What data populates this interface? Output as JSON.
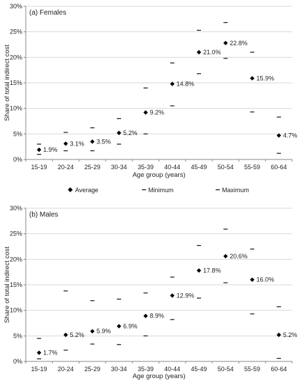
{
  "chart_data": [
    {
      "type": "scatter",
      "title": "(a) Females",
      "xlabel": "Age group (years)",
      "ylabel": "Share of total indirect cost",
      "ylim": [
        0,
        30
      ],
      "ytick_labels": [
        "0%",
        "5%",
        "10%",
        "15%",
        "20%",
        "25%",
        "30%"
      ],
      "categories": [
        "15-19",
        "20-24",
        "25-29",
        "30-34",
        "35-39",
        "40-44",
        "45-49",
        "50-54",
        "55-59",
        "60-64"
      ],
      "grid": true,
      "series": [
        {
          "name": "Average",
          "marker": "diamond",
          "values": [
            1.9,
            3.1,
            3.5,
            5.2,
            9.2,
            14.8,
            21.0,
            22.8,
            15.9,
            4.7
          ]
        },
        {
          "name": "Minimum",
          "marker": "dash",
          "values": [
            1.0,
            1.7,
            1.7,
            3.0,
            5.0,
            10.5,
            16.8,
            19.8,
            9.3,
            1.2
          ]
        },
        {
          "name": "Maximum",
          "marker": "dash",
          "values": [
            3.0,
            5.3,
            6.2,
            8.0,
            14.0,
            18.9,
            25.3,
            26.8,
            21.0,
            8.3
          ]
        }
      ],
      "data_labels": [
        "1.9%",
        "3.1%",
        "3.5%",
        "5.2%",
        "9.2%",
        "14.8%",
        "21.0%",
        "22.8%",
        "15.9%",
        "4.7%"
      ]
    },
    {
      "type": "scatter",
      "title": "(b) Males",
      "xlabel": "Age group (years)",
      "ylabel": "Share of total indirect cost",
      "ylim": [
        0,
        30
      ],
      "ytick_labels": [
        "0%",
        "5%",
        "10%",
        "15%",
        "20%",
        "25%",
        "30%"
      ],
      "categories": [
        "15-19",
        "20-24",
        "25-29",
        "30-34",
        "35-39",
        "40-44",
        "45-49",
        "50-54",
        "55-59",
        "60-64"
      ],
      "grid": true,
      "series": [
        {
          "name": "Average",
          "marker": "diamond",
          "values": [
            1.7,
            5.2,
            5.9,
            6.9,
            8.9,
            12.9,
            17.8,
            20.6,
            16.0,
            5.2
          ]
        },
        {
          "name": "Minimum",
          "marker": "dash",
          "values": [
            0.5,
            2.2,
            3.4,
            3.3,
            5.0,
            8.2,
            12.4,
            15.4,
            9.3,
            0.6
          ]
        },
        {
          "name": "Maximum",
          "marker": "dash",
          "values": [
            4.5,
            13.8,
            11.9,
            12.2,
            13.4,
            16.5,
            22.7,
            25.9,
            22.0,
            10.7
          ]
        }
      ],
      "data_labels": [
        "1.7%",
        "5.2%",
        "5.9%",
        "6.9%",
        "8.9%",
        "12.9%",
        "17.8%",
        "20.6%",
        "16.0%",
        "5.2%"
      ]
    }
  ],
  "legend": {
    "placement": "between-panels",
    "items": [
      "Average",
      "Minimum",
      "Maximum"
    ]
  },
  "colors": {
    "marker": "#000000",
    "dash": "#111111",
    "grid": "#d9d9d9",
    "axis": "#888888",
    "text": "#222222"
  }
}
